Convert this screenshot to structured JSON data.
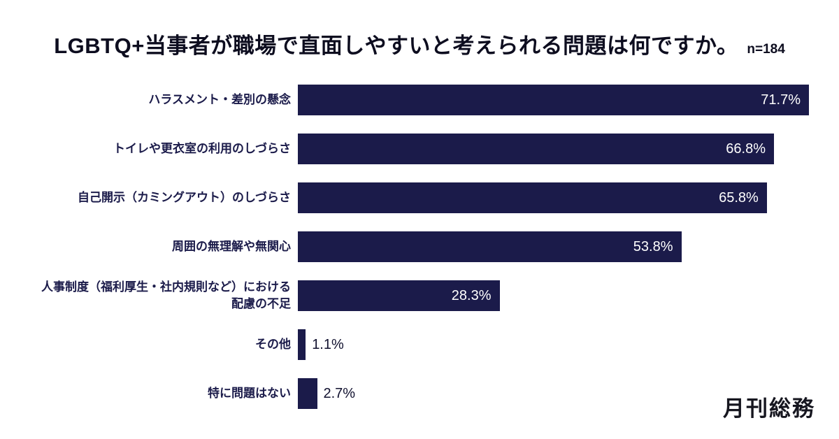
{
  "title": {
    "text": "LGBTQ+当事者が職場で直面しやすいと考えられる問題は何ですか。",
    "sample_size": "n=184"
  },
  "logo": "月刊総務",
  "colors": {
    "bar": "#1b1b4a",
    "value_inside": "#ffffff",
    "value_outside": "#10102e",
    "category_label": "#1b1b4a",
    "background": "#ffffff"
  },
  "chart_data": {
    "type": "bar",
    "orientation": "horizontal",
    "title": "LGBTQ+当事者が職場で直面しやすいと考えられる問題は何ですか。",
    "sample_size": "n=184",
    "categories": [
      "ハラスメント・差別の懸念",
      "トイレや更衣室の利用のしづらさ",
      "自己開示（カミングアウト）のしづらさ",
      "周囲の無理解や無関心",
      "人事制度（福利厚生・社内規則など）における\n配慮の不足",
      "その他",
      "特に問題はない"
    ],
    "values": [
      71.7,
      66.8,
      65.8,
      53.8,
      28.3,
      1.1,
      2.7
    ],
    "value_labels": [
      "71.7%",
      "66.8%",
      "65.8%",
      "53.8%",
      "28.3%",
      "1.1%",
      "2.7%"
    ],
    "xlim": [
      0,
      71.7
    ],
    "grid": false,
    "legend": "none",
    "value_label_position_rule": "inside bar for wide bars, outside right for narrow bars"
  }
}
